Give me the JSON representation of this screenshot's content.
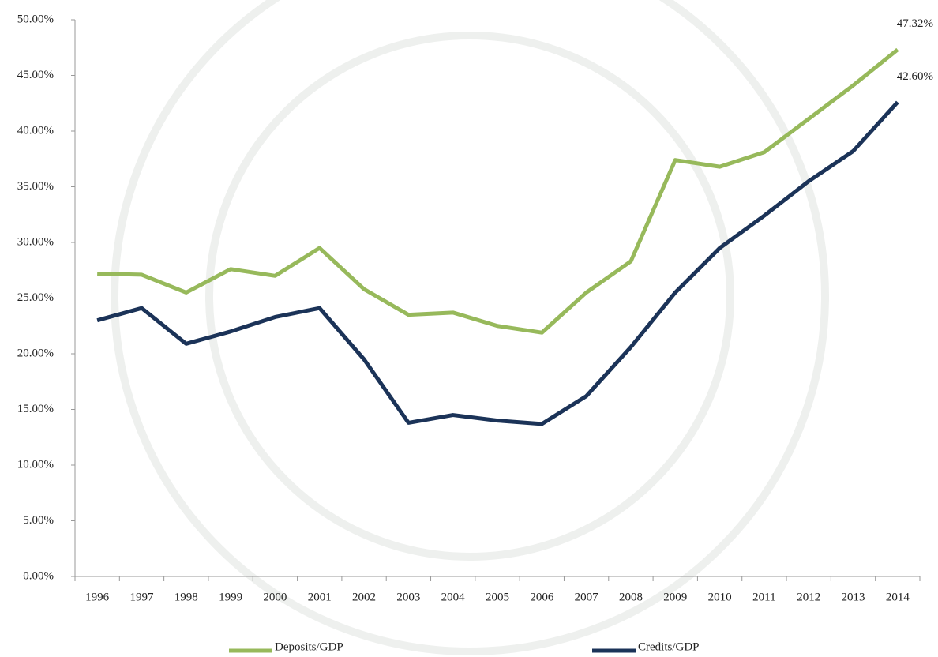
{
  "chart_data": {
    "type": "line",
    "categories": [
      "1996",
      "1997",
      "1998",
      "1999",
      "2000",
      "2001",
      "2002",
      "2003",
      "2004",
      "2005",
      "2006",
      "2007",
      "2008",
      "2009",
      "2010",
      "2011",
      "2012",
      "2013",
      "2014"
    ],
    "series": [
      {
        "name": "Deposits/GDP",
        "color": "#97b95b",
        "values": [
          27.2,
          27.1,
          25.5,
          27.6,
          27.0,
          29.5,
          25.8,
          23.5,
          23.7,
          22.5,
          21.9,
          25.5,
          28.3,
          37.4,
          36.8,
          38.1,
          41.1,
          44.1,
          47.32
        ],
        "value_labels": [
          null,
          null,
          null,
          null,
          null,
          null,
          null,
          null,
          null,
          null,
          null,
          null,
          null,
          null,
          null,
          null,
          null,
          null,
          "47.32%"
        ]
      },
      {
        "name": "Credits/GDP",
        "color": "#1b3358",
        "values": [
          23.0,
          24.1,
          20.9,
          22.0,
          23.3,
          24.1,
          19.5,
          13.8,
          14.5,
          14.0,
          13.7,
          16.2,
          20.6,
          25.5,
          29.5,
          32.4,
          35.5,
          38.2,
          42.6
        ],
        "value_labels": [
          null,
          null,
          null,
          null,
          null,
          null,
          null,
          null,
          null,
          null,
          null,
          null,
          null,
          null,
          null,
          null,
          null,
          null,
          "42.60%"
        ]
      }
    ],
    "ylim": [
      0,
      50
    ],
    "yticks": [
      {
        "value": 0,
        "label": "0.00%"
      },
      {
        "value": 5,
        "label": "5.00%"
      },
      {
        "value": 10,
        "label": "10.00%"
      },
      {
        "value": 15,
        "label": "15.00%"
      },
      {
        "value": 20,
        "label": "20.00%"
      },
      {
        "value": 25,
        "label": "25.00%"
      },
      {
        "value": 30,
        "label": "30.00%"
      },
      {
        "value": 35,
        "label": "35.00%"
      },
      {
        "value": 40,
        "label": "40.00%"
      },
      {
        "value": 45,
        "label": "45.00%"
      },
      {
        "value": 50,
        "label": "50.00%"
      }
    ],
    "grid": false,
    "legend": "bottom"
  }
}
